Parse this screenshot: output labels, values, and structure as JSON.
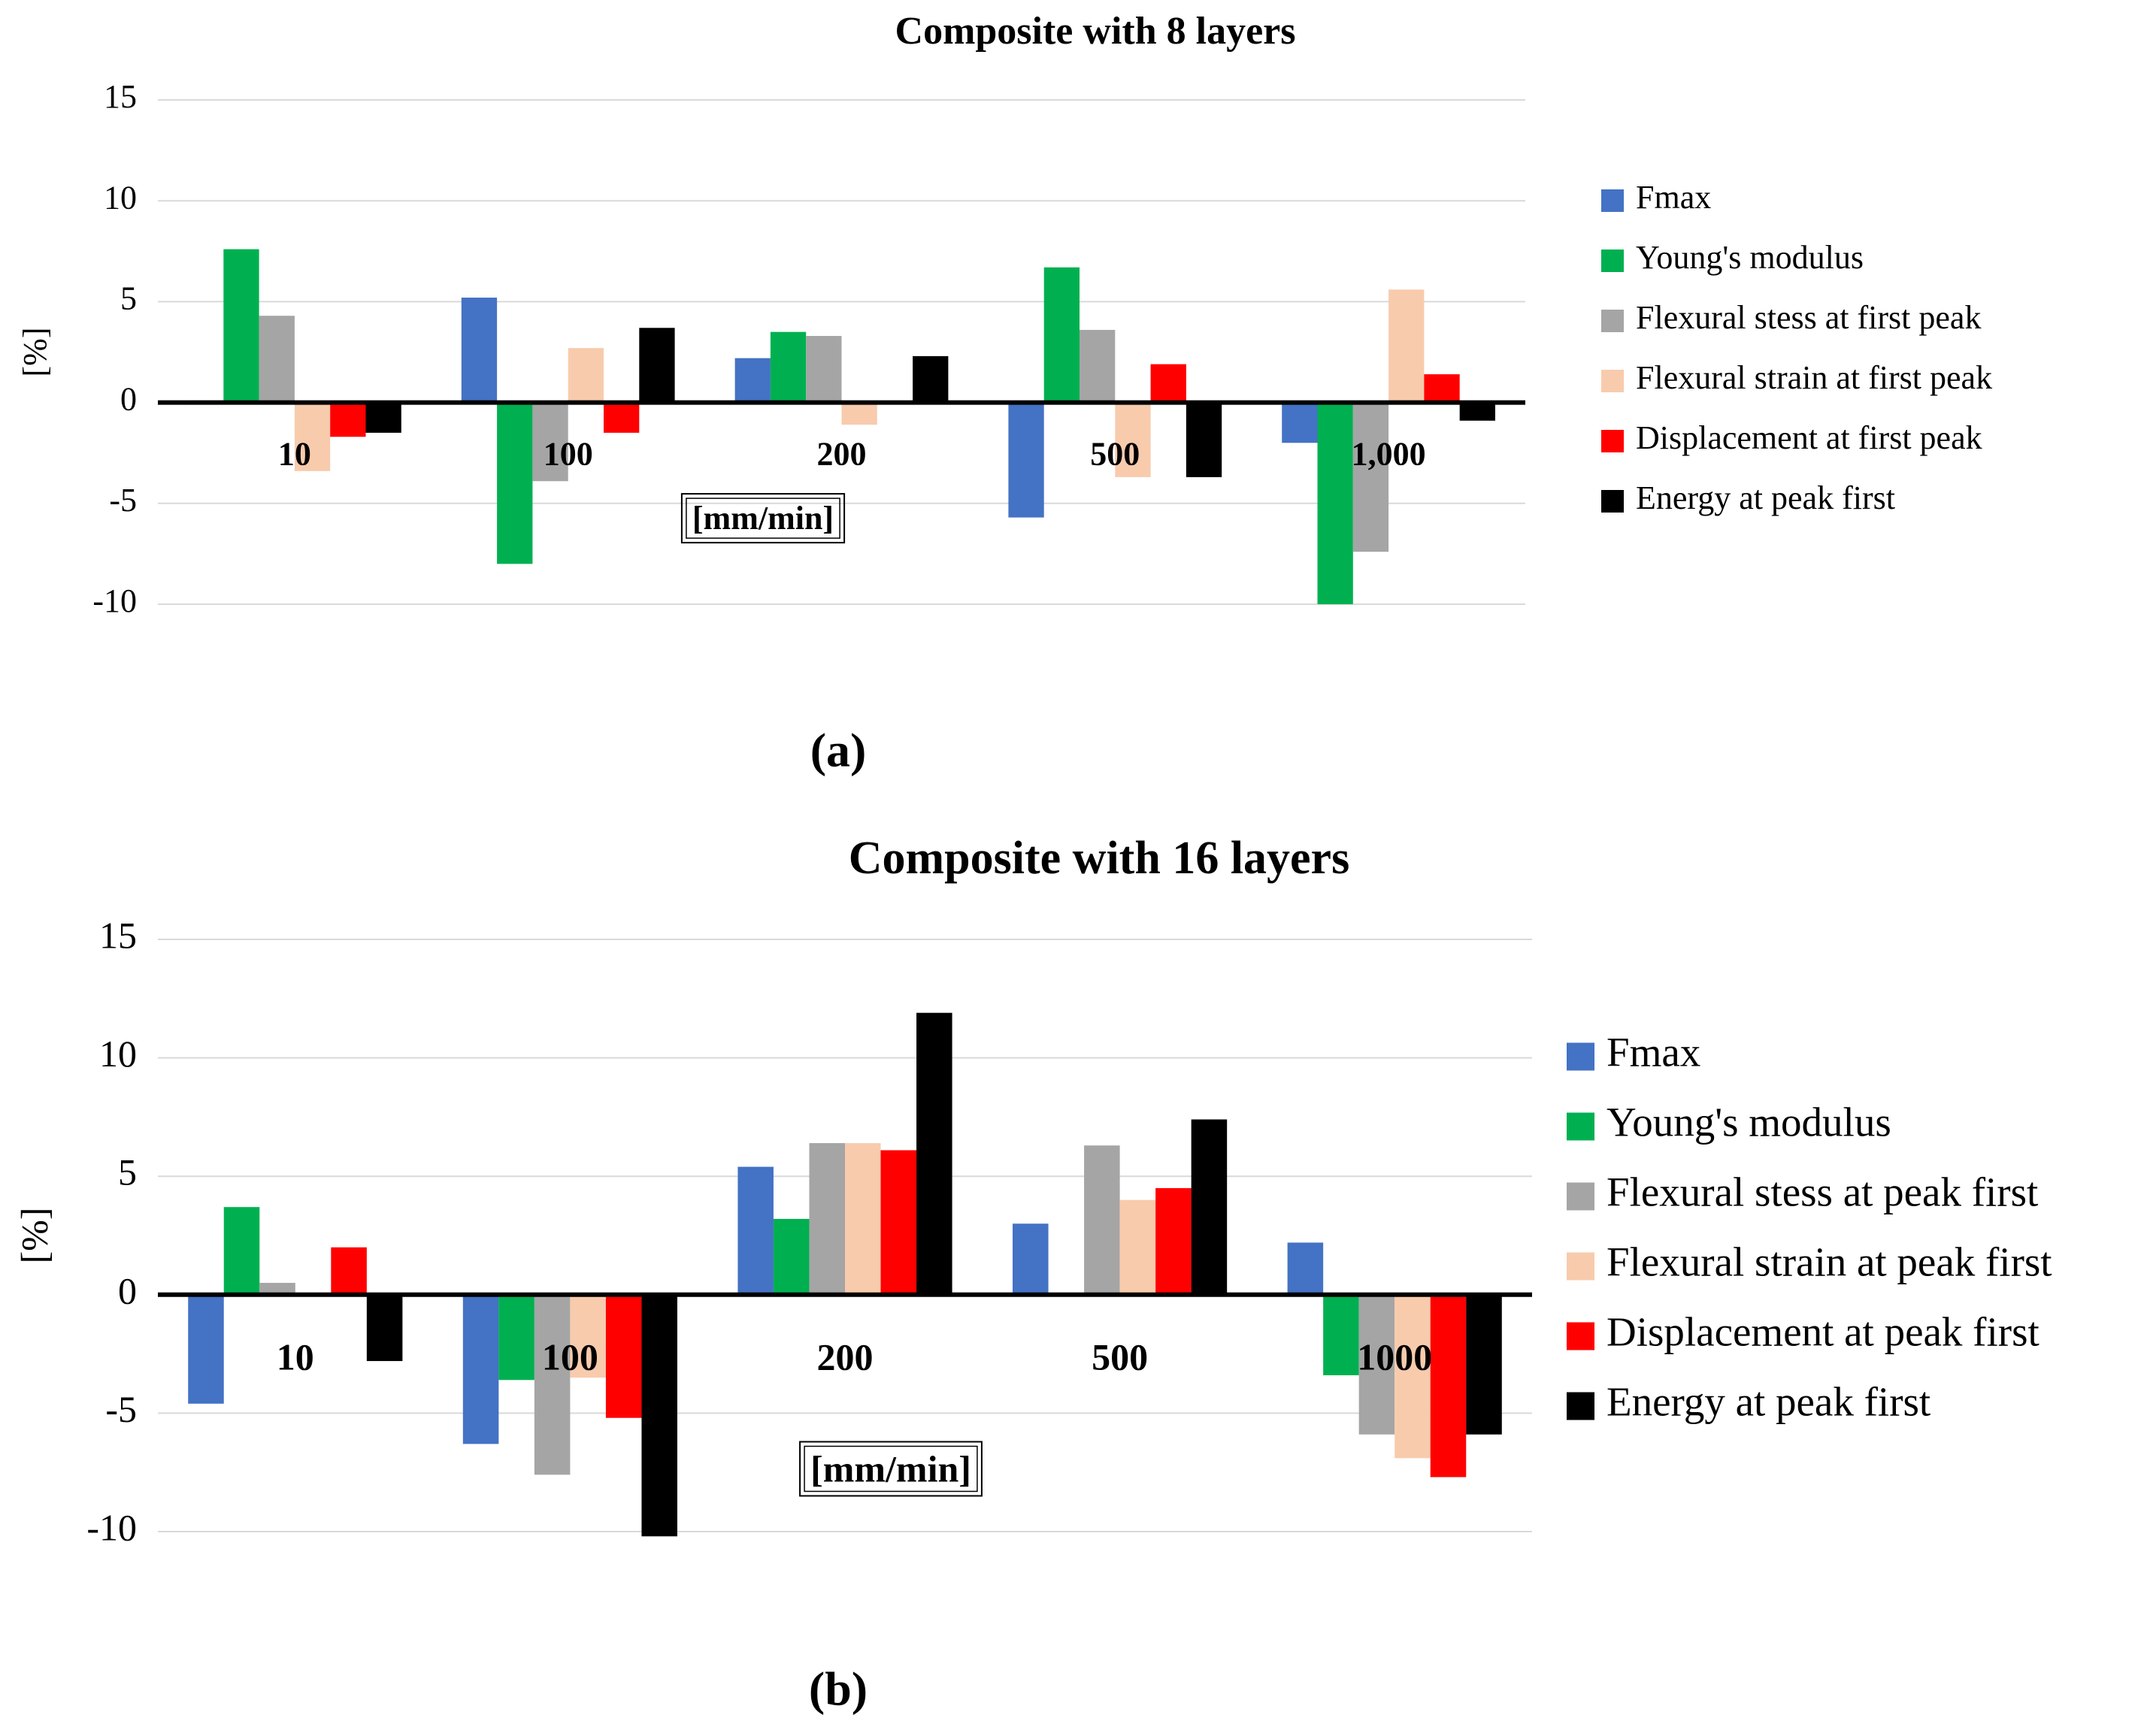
{
  "chart_data": [
    {
      "type": "bar",
      "title": "Composite with 8 layers",
      "caption": "(a)",
      "ylabel": "[%]",
      "xlabel": "[mm/min]",
      "categories": [
        "10",
        "100",
        "200",
        "500",
        "1,000"
      ],
      "ylim": [
        -10,
        15
      ],
      "yticks": [
        -10,
        -5,
        0,
        5,
        10,
        15
      ],
      "grid": true,
      "series": [
        {
          "name": "Fmax",
          "color": "#4472c4",
          "values": [
            0.1,
            5.2,
            2.2,
            -5.7,
            -2.0
          ]
        },
        {
          "name": "Young's modulus",
          "color": "#00b050",
          "values": [
            7.6,
            -8.0,
            3.5,
            6.7,
            -10.0
          ]
        },
        {
          "name": "Flexural stess at first peak",
          "color": "#a5a5a5",
          "values": [
            4.3,
            -3.9,
            3.3,
            3.6,
            -7.4
          ]
        },
        {
          "name": "Flexural strain at first peak",
          "color": "#f8cbad",
          "values": [
            -3.4,
            2.7,
            -1.1,
            -3.7,
            5.6
          ]
        },
        {
          "name": "Displacement at first peak",
          "color": "#ff0000",
          "values": [
            -1.7,
            -1.5,
            0,
            1.9,
            1.4
          ]
        },
        {
          "name": "Energy at peak first",
          "color": "#000000",
          "values": [
            -1.5,
            3.7,
            2.3,
            -3.7,
            -0.9
          ]
        }
      ]
    },
    {
      "type": "bar",
      "title": "Composite with 16 layers",
      "caption": "(b)",
      "ylabel": "[%]",
      "xlabel": "[mm/min]",
      "categories": [
        "10",
        "100",
        "200",
        "500",
        "1000"
      ],
      "ylim": [
        -10,
        15
      ],
      "yticks": [
        -10,
        -5,
        0,
        5,
        10,
        15
      ],
      "grid": true,
      "series": [
        {
          "name": "Fmax",
          "color": "#4472c4",
          "values": [
            -4.6,
            -6.3,
            5.4,
            3.0,
            2.2
          ]
        },
        {
          "name": "Young's modulus",
          "color": "#00b050",
          "values": [
            3.7,
            -3.6,
            3.2,
            0,
            -3.4
          ]
        },
        {
          "name": "Flexural stess at peak first",
          "color": "#a5a5a5",
          "values": [
            0.5,
            -7.6,
            6.4,
            6.3,
            -5.9
          ]
        },
        {
          "name": "Flexural strain at peak first",
          "color": "#f8cbad",
          "values": [
            0,
            -3.5,
            6.4,
            4.0,
            -6.9
          ]
        },
        {
          "name": "Displacement at peak first",
          "color": "#ff0000",
          "values": [
            2.0,
            -5.2,
            6.1,
            4.5,
            -7.7
          ]
        },
        {
          "name": "Energy at peak first",
          "color": "#000000",
          "values": [
            -2.8,
            -10.2,
            11.9,
            7.4,
            -5.9
          ]
        }
      ]
    }
  ]
}
